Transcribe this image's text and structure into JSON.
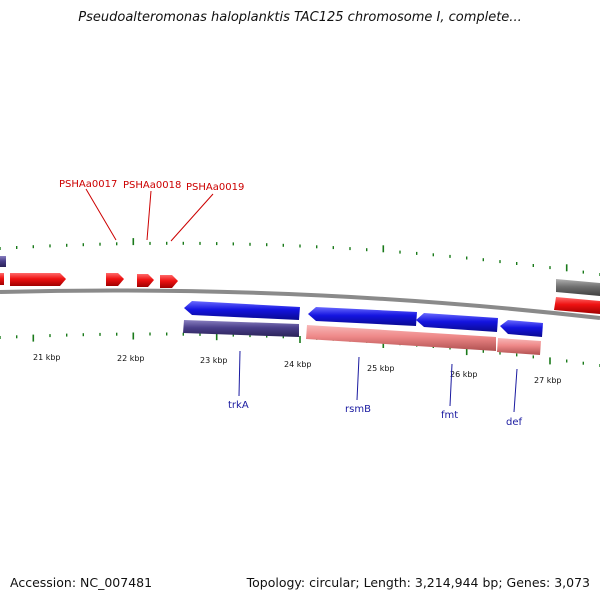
{
  "title": "Pseudoalteromonas haloplanktis TAC125 chromosome I, complete...",
  "footer": {
    "accession": "Accession: NC_007481",
    "summary": "Topology: circular; Length: 3,214,944 bp; Genes: 3,073"
  },
  "ticks": [
    {
      "label": "21 kbp"
    },
    {
      "label": "22 kbp"
    },
    {
      "label": "23 kbp"
    },
    {
      "label": "24 kbp"
    },
    {
      "label": "25 kbp"
    },
    {
      "label": "26 kbp"
    },
    {
      "label": "27 kbp"
    }
  ],
  "top_labels": [
    {
      "name": "PSHAa0017"
    },
    {
      "name": "PSHAa0018"
    },
    {
      "name": "PSHAa0019"
    }
  ],
  "bottom_labels": [
    {
      "name": "trkA"
    },
    {
      "name": "rsmB"
    },
    {
      "name": "fmt"
    },
    {
      "name": "def"
    }
  ],
  "colors": {
    "red": "#ee1111",
    "blue": "#1414e0",
    "navy": "#4a3f8a",
    "salmon": "#ee8888",
    "gray": "#707070",
    "tick": "#1a7a1a"
  }
}
